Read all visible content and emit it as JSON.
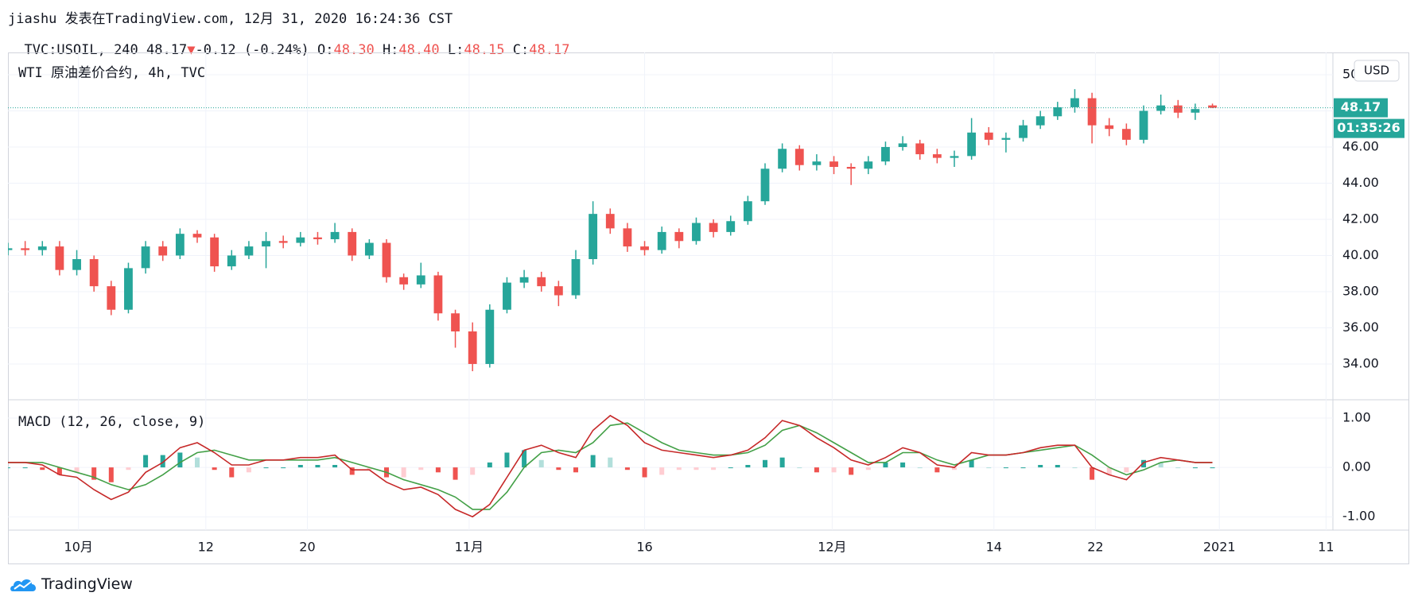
{
  "header": {
    "author_line": "jiashu 发表在TradingView.com, 12月 31, 2020 16:24:36 CST",
    "symbol": "TVC:USOIL, 240",
    "last": "48.17",
    "arrow": "▼",
    "change": "-0.12 (-0.24%)",
    "ohlc": [
      {
        "label": "O:",
        "value": "48.30"
      },
      {
        "label": "H:",
        "value": "48.40"
      },
      {
        "label": "L:",
        "value": "48.15"
      },
      {
        "label": "C:",
        "value": "48.17"
      }
    ]
  },
  "chart_data": [
    {
      "type": "candlestick",
      "title": "WTI 原油差价合约, 4h, TVC",
      "currency": "USD",
      "countdown": "01:35:26",
      "up_color": "#26a69a",
      "down_color": "#ef5350",
      "grid": true,
      "last_price": 48.17,
      "xlim": [
        0,
        77
      ],
      "xticks": [
        {
          "value": 4.1,
          "label": "10月"
        },
        {
          "value": 11.5,
          "label": "12"
        },
        {
          "value": 17.4,
          "label": "20"
        },
        {
          "value": 26.8,
          "label": "11月"
        },
        {
          "value": 37.0,
          "label": "16"
        },
        {
          "value": 47.9,
          "label": "12月"
        },
        {
          "value": 57.3,
          "label": "14"
        },
        {
          "value": 63.2,
          "label": "22"
        },
        {
          "value": 70.4,
          "label": "2021"
        },
        {
          "value": 76.6,
          "label": "11"
        }
      ],
      "ylim": [
        32.02,
        51.23
      ],
      "yticks": [
        {
          "value": 34,
          "label": "34.00"
        },
        {
          "value": 36,
          "label": "36.00"
        },
        {
          "value": 38,
          "label": "38.00"
        },
        {
          "value": 40,
          "label": "40.00"
        },
        {
          "value": 42,
          "label": "42.00"
        },
        {
          "value": 44,
          "label": "44.00"
        },
        {
          "value": 46,
          "label": "46.00"
        },
        {
          "value": 48,
          "label": "48.00"
        },
        {
          "value": 50,
          "label": "50.00"
        }
      ],
      "open": [
        40.3,
        40.4,
        40.3,
        40.5,
        39.2,
        39.8,
        38.3,
        37.0,
        39.3,
        40.5,
        40.0,
        41.2,
        41.0,
        39.4,
        40.0,
        40.5,
        40.8,
        40.7,
        41.0,
        40.9,
        41.3,
        40.0,
        40.7,
        38.8,
        38.4,
        38.9,
        36.8,
        35.8,
        34.0,
        37.0,
        38.5,
        38.8,
        38.3,
        37.8,
        39.8,
        42.3,
        41.5,
        40.5,
        40.3,
        41.3,
        40.8,
        41.8,
        41.3,
        41.9,
        43.0,
        44.8,
        45.9,
        45.0,
        45.2,
        44.9,
        44.8,
        45.2,
        46.0,
        46.2,
        45.6,
        45.4,
        45.5,
        46.8,
        46.4,
        46.5,
        47.2,
        47.7,
        48.2,
        48.7,
        47.2,
        47.0,
        46.4,
        48.0,
        48.3,
        47.9,
        48.3
      ],
      "high": [
        40.7,
        40.8,
        40.8,
        40.8,
        40.3,
        40.0,
        38.6,
        39.6,
        40.8,
        40.8,
        41.5,
        41.4,
        41.2,
        40.3,
        40.8,
        41.3,
        41.1,
        41.3,
        41.3,
        41.8,
        41.5,
        40.9,
        40.9,
        39.0,
        39.6,
        39.1,
        37.0,
        36.3,
        37.3,
        38.8,
        39.2,
        39.1,
        38.6,
        40.3,
        43.0,
        42.6,
        41.8,
        40.8,
        41.6,
        41.5,
        42.1,
        42.0,
        42.2,
        43.3,
        45.1,
        46.2,
        46.1,
        45.6,
        45.5,
        45.1,
        45.5,
        46.3,
        46.6,
        46.4,
        45.9,
        45.8,
        47.6,
        47.1,
        46.8,
        47.5,
        48.0,
        48.5,
        49.2,
        49.0,
        47.6,
        47.3,
        48.3,
        48.9,
        48.6,
        48.4,
        48.4
      ],
      "low": [
        40.0,
        40.0,
        40.0,
        38.9,
        38.9,
        38.0,
        36.7,
        36.8,
        39.0,
        39.7,
        39.8,
        40.7,
        39.1,
        39.2,
        39.8,
        39.3,
        40.4,
        40.5,
        40.6,
        40.7,
        39.7,
        39.8,
        38.5,
        38.1,
        38.2,
        36.4,
        34.9,
        33.6,
        33.8,
        36.8,
        38.2,
        38.0,
        37.2,
        37.6,
        39.5,
        41.2,
        40.2,
        40.0,
        40.1,
        40.4,
        40.6,
        41.0,
        41.1,
        41.7,
        42.8,
        44.6,
        44.7,
        44.7,
        44.5,
        43.9,
        44.5,
        45.0,
        45.8,
        45.3,
        45.1,
        44.9,
        45.3,
        46.1,
        45.7,
        46.3,
        47.0,
        47.5,
        47.9,
        46.2,
        46.6,
        46.1,
        46.2,
        47.8,
        47.6,
        47.5,
        48.15
      ],
      "close": [
        40.4,
        40.3,
        40.5,
        39.2,
        39.8,
        38.3,
        37.0,
        39.3,
        40.5,
        40.0,
        41.2,
        41.0,
        39.4,
        40.0,
        40.5,
        40.8,
        40.7,
        41.0,
        40.9,
        41.3,
        40.0,
        40.7,
        38.8,
        38.4,
        38.9,
        36.8,
        35.8,
        34.0,
        37.0,
        38.5,
        38.8,
        38.3,
        37.8,
        39.8,
        42.3,
        41.5,
        40.5,
        40.3,
        41.3,
        40.8,
        41.8,
        41.3,
        41.9,
        43.0,
        44.8,
        45.9,
        45.0,
        45.2,
        44.9,
        44.8,
        45.2,
        46.0,
        46.2,
        45.6,
        45.4,
        45.5,
        46.8,
        46.4,
        46.5,
        47.2,
        47.7,
        48.2,
        48.7,
        47.2,
        47.0,
        46.4,
        48.0,
        48.3,
        47.9,
        48.1,
        48.17
      ]
    },
    {
      "type": "macd",
      "title": "MACD (12, 26, close, 9)",
      "grid": true,
      "ylim": [
        -1.27,
        1.37
      ],
      "yticks": [
        {
          "value": 1,
          "label": "1.00"
        },
        {
          "value": 0,
          "label": "0.00"
        },
        {
          "value": -1,
          "label": "-1.00"
        }
      ],
      "macd": {
        "color": "#c62828",
        "values": [
          0.1,
          0.1,
          0.05,
          -0.15,
          -0.2,
          -0.45,
          -0.65,
          -0.5,
          -0.1,
          0.1,
          0.4,
          0.5,
          0.3,
          0.05,
          0.05,
          0.15,
          0.15,
          0.2,
          0.2,
          0.25,
          -0.05,
          -0.05,
          -0.3,
          -0.45,
          -0.4,
          -0.55,
          -0.85,
          -1.0,
          -0.75,
          -0.2,
          0.35,
          0.45,
          0.3,
          0.2,
          0.75,
          1.05,
          0.85,
          0.5,
          0.35,
          0.3,
          0.25,
          0.2,
          0.25,
          0.35,
          0.6,
          0.95,
          0.85,
          0.6,
          0.4,
          0.15,
          0.05,
          0.2,
          0.4,
          0.3,
          0.05,
          0.0,
          0.3,
          0.25,
          0.25,
          0.3,
          0.4,
          0.45,
          0.45,
          0.0,
          -0.15,
          -0.25,
          0.1,
          0.2,
          0.15,
          0.1,
          0.1
        ]
      },
      "signal": {
        "color": "#43a047",
        "values": [
          0.1,
          0.1,
          0.1,
          0.0,
          -0.1,
          -0.2,
          -0.35,
          -0.45,
          -0.35,
          -0.15,
          0.1,
          0.3,
          0.35,
          0.25,
          0.15,
          0.15,
          0.15,
          0.15,
          0.15,
          0.2,
          0.1,
          0.0,
          -0.1,
          -0.25,
          -0.35,
          -0.45,
          -0.6,
          -0.85,
          -0.85,
          -0.5,
          0.0,
          0.3,
          0.35,
          0.3,
          0.5,
          0.85,
          0.9,
          0.7,
          0.5,
          0.35,
          0.3,
          0.25,
          0.25,
          0.3,
          0.45,
          0.75,
          0.85,
          0.7,
          0.5,
          0.3,
          0.1,
          0.1,
          0.3,
          0.3,
          0.15,
          0.05,
          0.15,
          0.25,
          0.25,
          0.3,
          0.35,
          0.4,
          0.45,
          0.25,
          0.0,
          -0.15,
          -0.05,
          0.1,
          0.15,
          0.1,
          0.1
        ]
      },
      "histogram": {
        "colors": [
          "#26a69a",
          "#b2dfdb",
          "#ffcdd2",
          "#ef5350"
        ],
        "values": [
          0,
          0,
          -0.05,
          -0.15,
          -0.1,
          -0.25,
          -0.3,
          -0.05,
          0.25,
          0.25,
          0.3,
          0.2,
          -0.05,
          -0.2,
          -0.1,
          0,
          0,
          0.05,
          0.05,
          0.05,
          -0.15,
          -0.05,
          -0.2,
          -0.2,
          -0.05,
          -0.1,
          -0.25,
          -0.15,
          0.1,
          0.3,
          0.35,
          0.15,
          -0.05,
          -0.1,
          0.25,
          0.2,
          -0.05,
          -0.2,
          -0.15,
          -0.05,
          -0.05,
          -0.05,
          0,
          0.05,
          0.15,
          0.2,
          0,
          -0.1,
          -0.1,
          -0.15,
          -0.05,
          0.1,
          0.1,
          0,
          -0.1,
          -0.05,
          0.15,
          0,
          0,
          0,
          0.05,
          0.05,
          0,
          -0.25,
          -0.15,
          -0.1,
          0.15,
          0.1,
          0,
          0,
          0
        ]
      }
    }
  ],
  "footer": {
    "logo": "TradingView"
  }
}
